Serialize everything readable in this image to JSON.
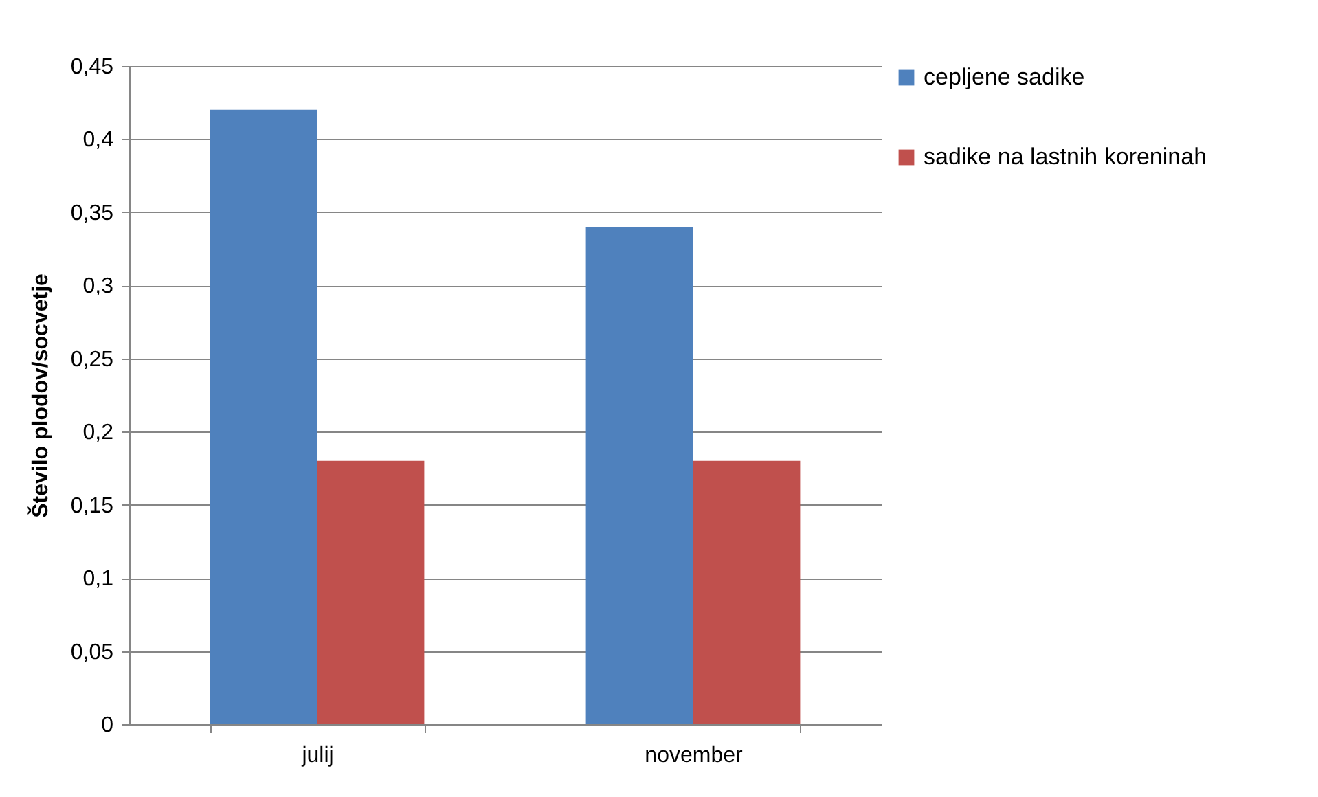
{
  "chart_data": {
    "type": "bar",
    "ylabel": "Število plodov/socvetje",
    "categories": [
      "julij",
      "november"
    ],
    "series": [
      {
        "name": "cepljene sadike",
        "color": "#4f81bd",
        "values": [
          0.42,
          0.34
        ]
      },
      {
        "name": "sadike na lastnih koreninah",
        "color": "#c0504d",
        "values": [
          0.18,
          0.18
        ]
      }
    ],
    "ylim": [
      0,
      0.45
    ],
    "yticks": [
      {
        "value": 0,
        "label": "0"
      },
      {
        "value": 0.05,
        "label": "0,05"
      },
      {
        "value": 0.1,
        "label": "0,1"
      },
      {
        "value": 0.15,
        "label": "0,15"
      },
      {
        "value": 0.2,
        "label": "0,2"
      },
      {
        "value": 0.25,
        "label": "0,25"
      },
      {
        "value": 0.3,
        "label": "0,3"
      },
      {
        "value": 0.35,
        "label": "0,35"
      },
      {
        "value": 0.4,
        "label": "0,4"
      },
      {
        "value": 0.45,
        "label": "0,45"
      }
    ],
    "grid": "y",
    "legend": "right"
  }
}
